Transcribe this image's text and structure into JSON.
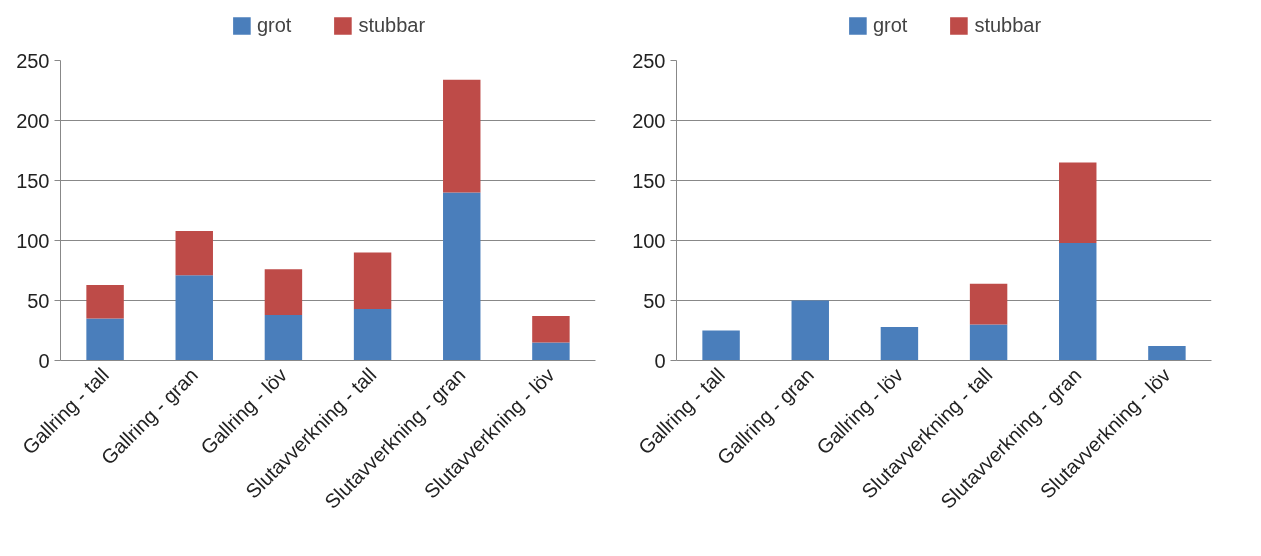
{
  "chart_data": [
    {
      "type": "bar",
      "stacked": true,
      "categories": [
        "Gallring - tall",
        "Gallring - gran",
        "Gallring - löv",
        "Slutavverkning - tall",
        "Slutavverkning - gran",
        "Slutavverkning - löv"
      ],
      "series": [
        {
          "name": "grot",
          "color": "#4a7ebb",
          "values": [
            35,
            71,
            38,
            43,
            140,
            15
          ]
        },
        {
          "name": "stubbar",
          "color": "#be4b48",
          "values": [
            28,
            37,
            38,
            47,
            94,
            22
          ]
        }
      ],
      "ylim": [
        0,
        250
      ],
      "yticks": [
        0,
        50,
        100,
        150,
        200,
        250
      ],
      "grid": "y",
      "legend": "top"
    },
    {
      "type": "bar",
      "stacked": true,
      "categories": [
        "Gallring - tall",
        "Gallring - gran",
        "Gallring - löv",
        "Slutavverkning - tall",
        "Slutavverkning - gran",
        "Slutavverkning - löv"
      ],
      "series": [
        {
          "name": "grot",
          "color": "#4a7ebb",
          "values": [
            25,
            50,
            28,
            30,
            98,
            12
          ]
        },
        {
          "name": "stubbar",
          "color": "#be4b48",
          "values": [
            0,
            0,
            0,
            34,
            67,
            0
          ]
        }
      ],
      "ylim": [
        0,
        250
      ],
      "yticks": [
        0,
        50,
        100,
        150,
        200,
        250
      ],
      "grid": "y",
      "legend": "top"
    }
  ]
}
